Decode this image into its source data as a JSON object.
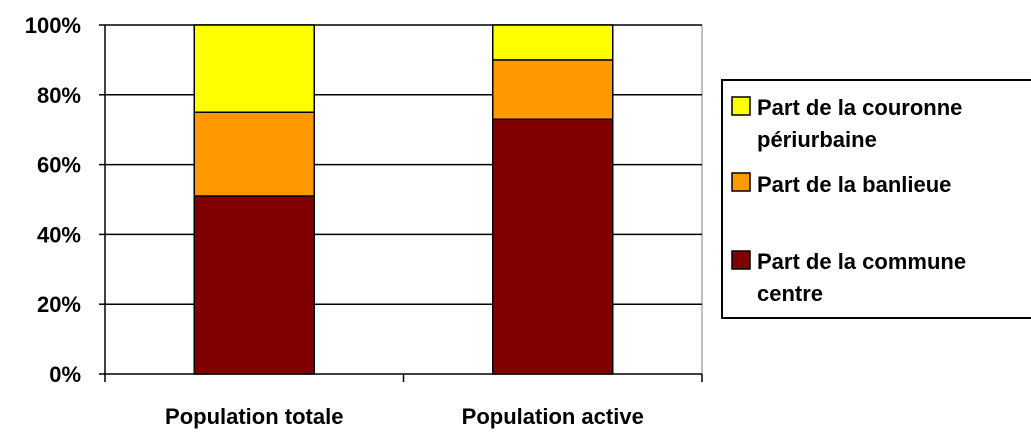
{
  "chart_data": {
    "type": "bar",
    "stacked": true,
    "percent": true,
    "categories": [
      "Population totale",
      "Population active"
    ],
    "series": [
      {
        "name": "Part de la commune centre",
        "values": [
          51,
          73
        ],
        "color": "#800000"
      },
      {
        "name": "Part de la banlieue",
        "values": [
          24,
          17
        ],
        "color": "#FF9900"
      },
      {
        "name": "Part de la couronne périurbaine",
        "values": [
          25,
          10
        ],
        "color": "#FFFF00"
      }
    ],
    "ylim": [
      0,
      100
    ],
    "yticks": [
      "0%",
      "20%",
      "40%",
      "60%",
      "80%",
      "100%"
    ],
    "grid": true,
    "legend_position": "right",
    "legend": [
      {
        "lines": [
          "Part de la couronne",
          "périurbaine"
        ],
        "color": "#FFFF00"
      },
      {
        "lines": [
          "Part de la banlieue"
        ],
        "color": "#FF9900"
      },
      {
        "lines": [
          "Part de la commune",
          "centre"
        ],
        "color": "#800000"
      }
    ],
    "title": "",
    "xlabel": "",
    "ylabel": ""
  }
}
